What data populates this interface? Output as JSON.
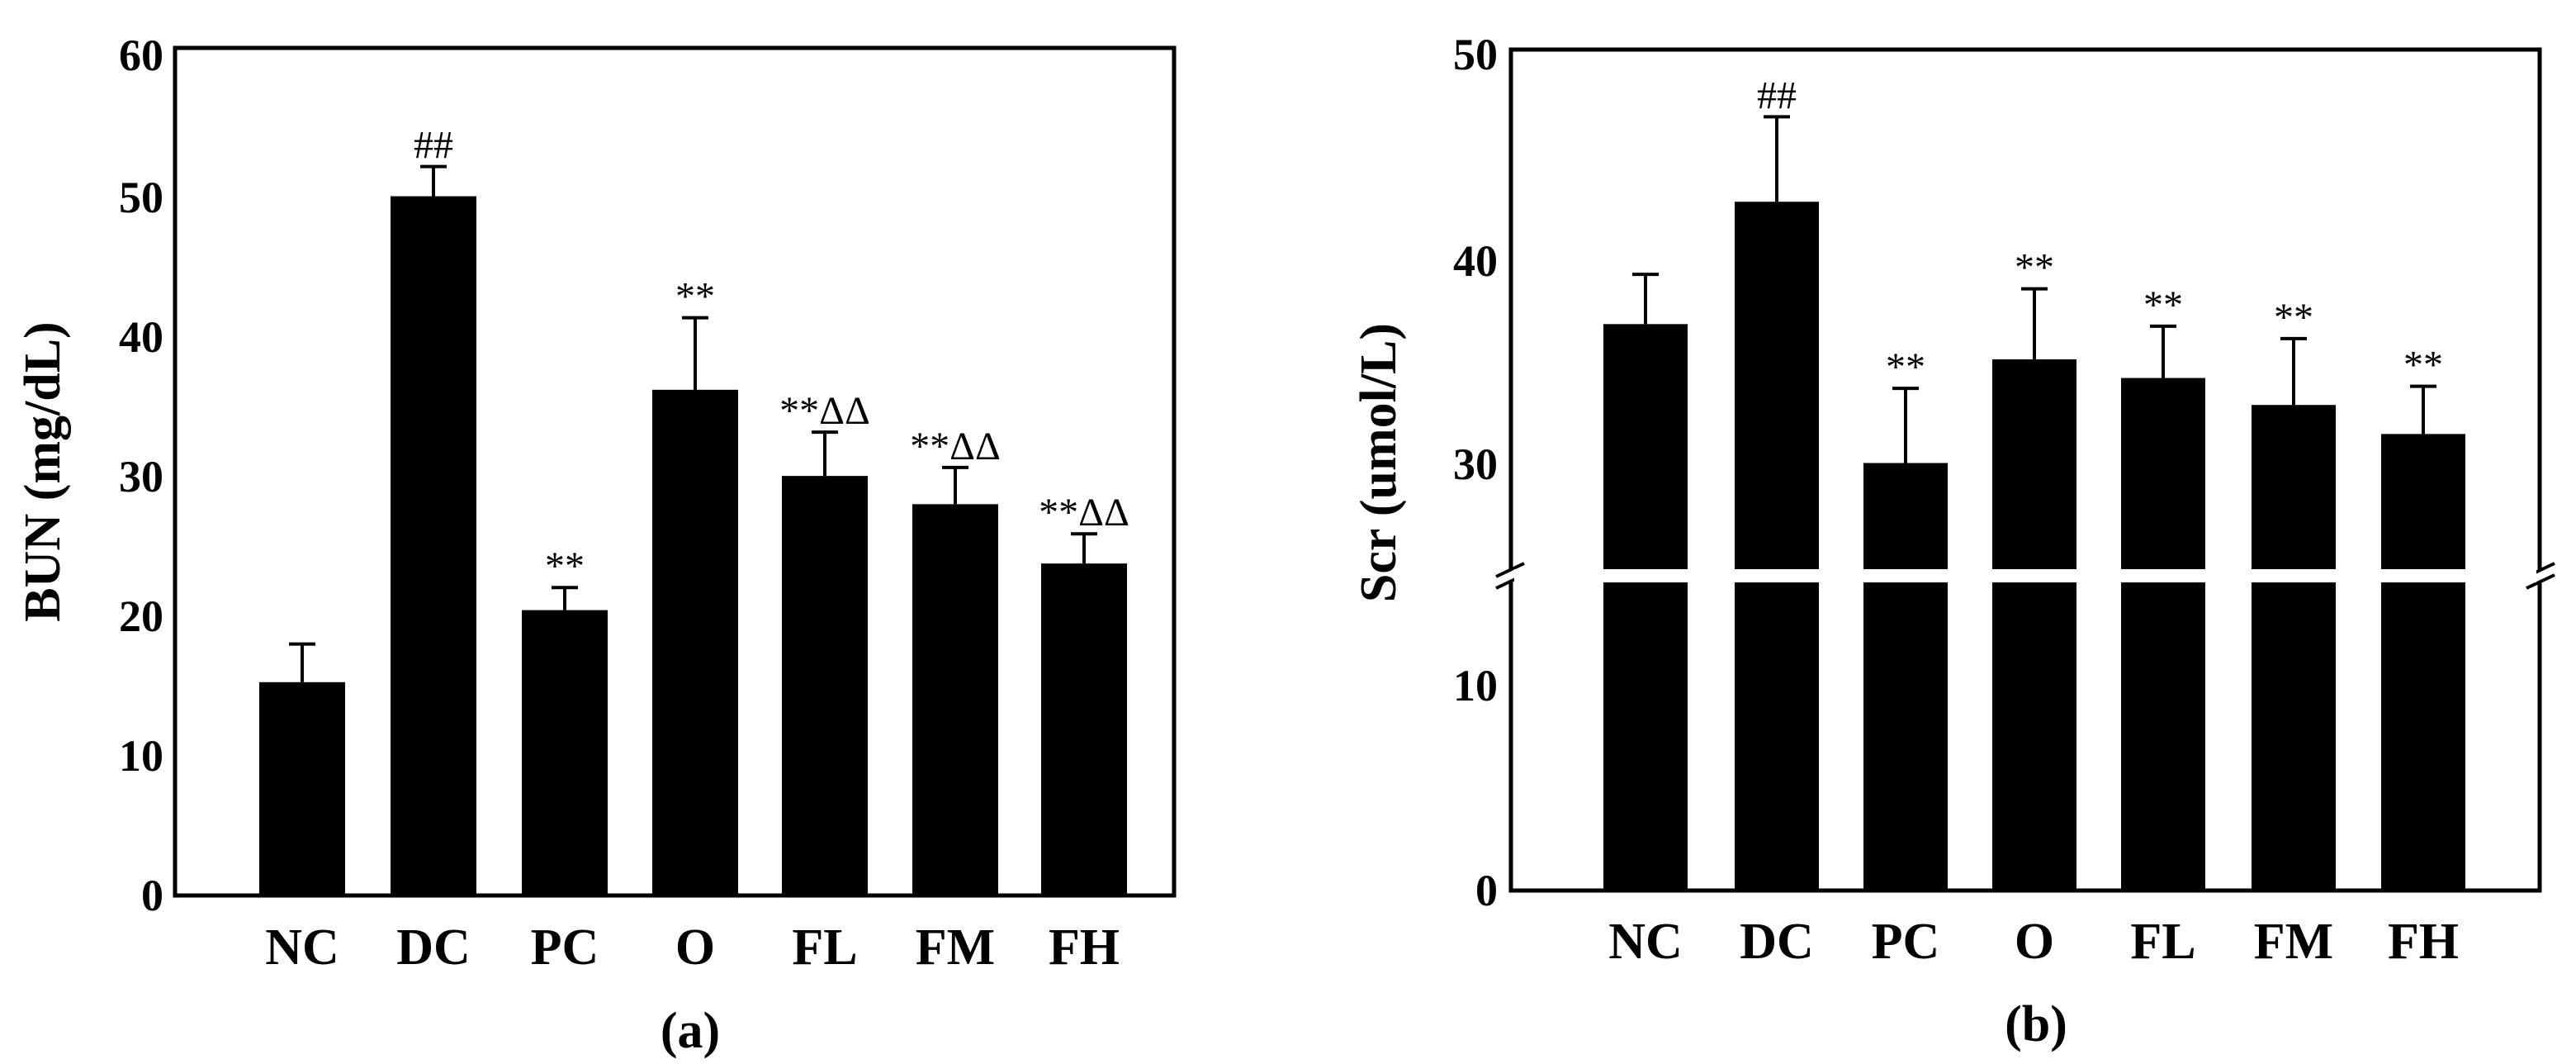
{
  "chart_data": [
    {
      "type": "bar",
      "panel_label": "(a)",
      "ylabel": "BUN (mg/dL)",
      "xlabel": "",
      "categories": [
        "NC",
        "DC",
        "PC",
        "O",
        "FL",
        "FM",
        "FH"
      ],
      "values": [
        15.1,
        49.5,
        20.2,
        35.8,
        29.7,
        27.7,
        23.5
      ],
      "errors": [
        2.7,
        2.1,
        1.6,
        5.1,
        3.1,
        2.6,
        2.1
      ],
      "annotations": [
        "",
        "##",
        "**",
        "**",
        "**ΔΔ",
        "**ΔΔ",
        "**ΔΔ"
      ],
      "ylim": [
        0,
        60
      ],
      "yticks": [
        "0",
        "10",
        "20",
        "30",
        "40",
        "50",
        "60"
      ],
      "broken_axis": false,
      "grid": false,
      "bar_color": "#000000"
    },
    {
      "type": "bar",
      "panel_label": "(b)",
      "ylabel": "Scr (umol/L)",
      "xlabel": "",
      "categories": [
        "NC",
        "DC",
        "PC",
        "O",
        "FL",
        "FM",
        "FH"
      ],
      "values": [
        36.8,
        42.7,
        30.1,
        35.1,
        34.2,
        32.9,
        31.5
      ],
      "errors": [
        2.4,
        4.1,
        3.6,
        3.4,
        2.5,
        3.2,
        2.3
      ],
      "annotations": [
        "",
        "##",
        "**",
        "**",
        "**",
        "**",
        "**"
      ],
      "ylim": [
        0,
        50
      ],
      "yticks": [
        "0",
        "10",
        "30",
        "40",
        "50"
      ],
      "broken_axis": true,
      "axis_break": [
        15,
        25
      ],
      "grid": false,
      "bar_color": "#000000"
    }
  ]
}
